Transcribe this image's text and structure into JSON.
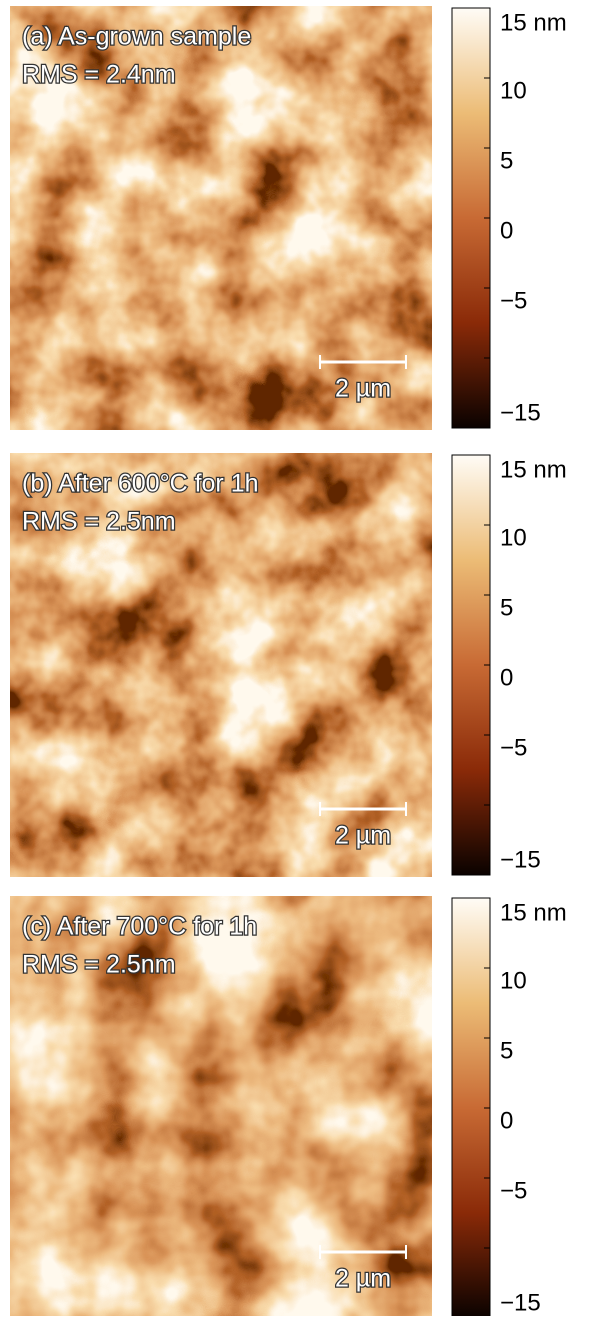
{
  "panels": [
    {
      "title": "(a) As-grown sample",
      "rms": "RMS = 2.4nm",
      "scale_bar": "2 µm",
      "colorbar": {
        "lim": [
          -15,
          15
        ],
        "ticks": [
          {
            "value": 15,
            "label": "15 nm"
          },
          10,
          5,
          0,
          {
            "value": -5,
            "label": "−5"
          },
          {
            "value": -10,
            "label": null
          },
          {
            "value": -15,
            "label": "−15"
          }
        ]
      }
    },
    {
      "title": "(b) After 600°C for 1h",
      "rms": "RMS = 2.5nm",
      "scale_bar": "2 µm",
      "colorbar": {
        "lim": [
          -15,
          15
        ],
        "ticks": [
          {
            "value": 15,
            "label": "15 nm"
          },
          10,
          5,
          0,
          {
            "value": -5,
            "label": "−5"
          },
          {
            "value": -10,
            "label": null
          },
          {
            "value": -15,
            "label": "−15"
          }
        ]
      }
    },
    {
      "title": "(c) After 700°C for 1h",
      "rms": "RMS = 2.5nm",
      "scale_bar": "2 µm",
      "colorbar": {
        "lim": [
          -15,
          15
        ],
        "ticks": [
          {
            "value": 15,
            "label": "15 nm"
          },
          10,
          5,
          0,
          {
            "value": -5,
            "label": "−5"
          },
          {
            "value": -10,
            "label": null
          },
          {
            "value": -15,
            "label": "−15"
          }
        ]
      }
    }
  ]
}
